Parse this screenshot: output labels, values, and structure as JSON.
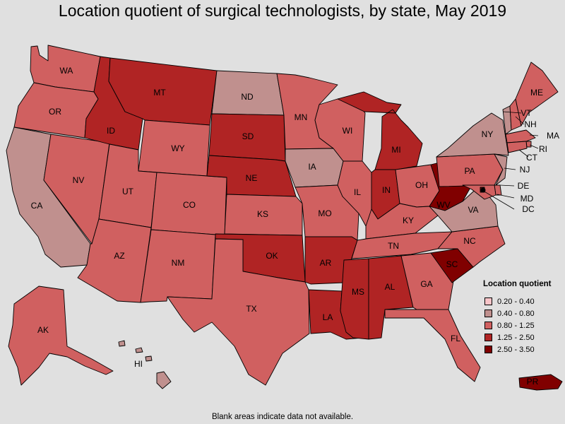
{
  "title": "Location quotient of surgical technologists, by state, May 2019",
  "note": "Blank areas indicate data not available.",
  "legend": {
    "title": "Location quotient",
    "items": [
      {
        "label": "0.20 - 0.40",
        "color": "#f8c4c8"
      },
      {
        "label": "0.40 - 0.80",
        "color": "#c0908e"
      },
      {
        "label": "0.80 - 1.25",
        "color": "#d06060"
      },
      {
        "label": "1.25 - 2.50",
        "color": "#b02424"
      },
      {
        "label": "2.50 - 3.50",
        "color": "#800000"
      }
    ]
  },
  "states": [
    {
      "abbr": "WA",
      "class": "0.80 - 1.25"
    },
    {
      "abbr": "OR",
      "class": "0.80 - 1.25"
    },
    {
      "abbr": "CA",
      "class": "0.40 - 0.80"
    },
    {
      "abbr": "NV",
      "class": "0.80 - 1.25"
    },
    {
      "abbr": "ID",
      "class": "1.25 - 2.50"
    },
    {
      "abbr": "MT",
      "class": "1.25 - 2.50"
    },
    {
      "abbr": "WY",
      "class": "0.80 - 1.25"
    },
    {
      "abbr": "UT",
      "class": "0.80 - 1.25"
    },
    {
      "abbr": "AZ",
      "class": "0.80 - 1.25"
    },
    {
      "abbr": "CO",
      "class": "0.80 - 1.25"
    },
    {
      "abbr": "NM",
      "class": "0.80 - 1.25"
    },
    {
      "abbr": "ND",
      "class": "0.40 - 0.80"
    },
    {
      "abbr": "SD",
      "class": "1.25 - 2.50"
    },
    {
      "abbr": "NE",
      "class": "1.25 - 2.50"
    },
    {
      "abbr": "KS",
      "class": "0.80 - 1.25"
    },
    {
      "abbr": "OK",
      "class": "1.25 - 2.50"
    },
    {
      "abbr": "TX",
      "class": "0.80 - 1.25"
    },
    {
      "abbr": "MN",
      "class": "0.80 - 1.25"
    },
    {
      "abbr": "IA",
      "class": "0.40 - 0.80"
    },
    {
      "abbr": "MO",
      "class": "0.80 - 1.25"
    },
    {
      "abbr": "AR",
      "class": "1.25 - 2.50"
    },
    {
      "abbr": "LA",
      "class": "1.25 - 2.50"
    },
    {
      "abbr": "WI",
      "class": "0.80 - 1.25"
    },
    {
      "abbr": "IL",
      "class": "0.80 - 1.25"
    },
    {
      "abbr": "MI",
      "class": "1.25 - 2.50"
    },
    {
      "abbr": "IN",
      "class": "1.25 - 2.50"
    },
    {
      "abbr": "OH",
      "class": "0.80 - 1.25"
    },
    {
      "abbr": "KY",
      "class": "0.80 - 1.25"
    },
    {
      "abbr": "TN",
      "class": "0.80 - 1.25"
    },
    {
      "abbr": "MS",
      "class": "1.25 - 2.50"
    },
    {
      "abbr": "AL",
      "class": "1.25 - 2.50"
    },
    {
      "abbr": "GA",
      "class": "0.80 - 1.25"
    },
    {
      "abbr": "FL",
      "class": "0.80 - 1.25"
    },
    {
      "abbr": "SC",
      "class": "2.50 - 3.50"
    },
    {
      "abbr": "NC",
      "class": "0.80 - 1.25"
    },
    {
      "abbr": "VA",
      "class": "0.40 - 0.80"
    },
    {
      "abbr": "WV",
      "class": "2.50 - 3.50"
    },
    {
      "abbr": "PA",
      "class": "0.80 - 1.25"
    },
    {
      "abbr": "NY",
      "class": "0.40 - 0.80"
    },
    {
      "abbr": "VT",
      "class": "0.40 - 0.80"
    },
    {
      "abbr": "NH",
      "class": "0.80 - 1.25"
    },
    {
      "abbr": "ME",
      "class": "0.80 - 1.25"
    },
    {
      "abbr": "MA",
      "class": "0.80 - 1.25"
    },
    {
      "abbr": "RI",
      "class": "0.80 - 1.25"
    },
    {
      "abbr": "CT",
      "class": "0.80 - 1.25"
    },
    {
      "abbr": "NJ",
      "class": "0.40 - 0.80"
    },
    {
      "abbr": "DE",
      "class": "0.80 - 1.25"
    },
    {
      "abbr": "MD",
      "class": "0.80 - 1.25"
    },
    {
      "abbr": "DC",
      "class": "2.50 - 3.50"
    },
    {
      "abbr": "AK",
      "class": "0.80 - 1.25"
    },
    {
      "abbr": "HI",
      "class": "0.40 - 0.80"
    },
    {
      "abbr": "PR",
      "class": "2.50 - 3.50"
    }
  ]
}
